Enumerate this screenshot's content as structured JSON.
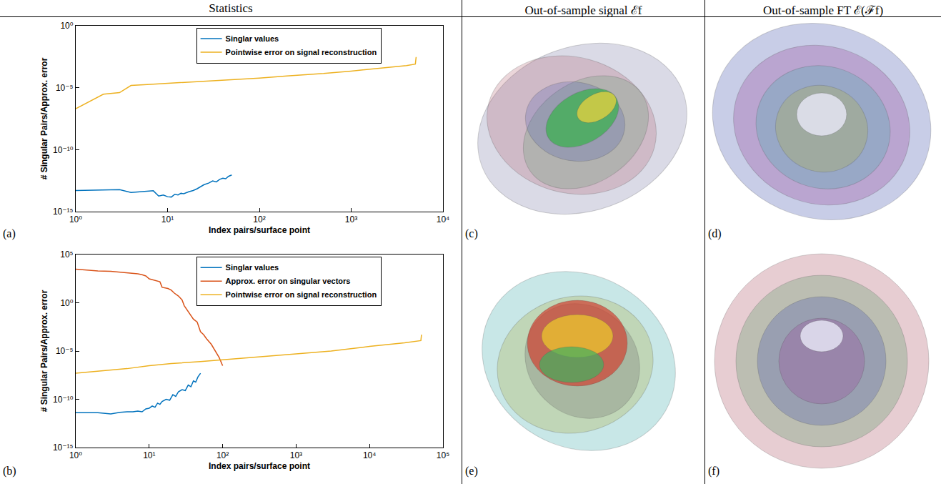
{
  "header": {
    "columns": [
      "Statistics",
      "Out-of-sample signal ℰf",
      "Out-of-sample FT ℰ(ℱf)"
    ]
  },
  "chart_data": [
    {
      "panel": "(a)",
      "type": "line",
      "log": true,
      "grid": false,
      "legend": "top",
      "xlabel": "Index pairs/surface point",
      "ylabel": "# Singular Pairs/Approx. error",
      "xlim": [
        1,
        10000
      ],
      "xticks": [
        {
          "value": 1,
          "label": "10⁰"
        },
        {
          "value": 10,
          "label": "10¹"
        },
        {
          "value": 100,
          "label": "10²"
        },
        {
          "value": 1000,
          "label": "10³"
        },
        {
          "value": 10000,
          "label": "10⁴"
        }
      ],
      "ylim": [
        1e-15,
        1
      ],
      "yticks": [
        {
          "value": 1e-15,
          "label": "10⁻¹⁵"
        },
        {
          "value": 1e-10,
          "label": "10⁻¹⁰"
        },
        {
          "value": 1e-05,
          "label": "10⁻⁵"
        },
        {
          "value": 1,
          "label": "10⁰"
        }
      ],
      "series": [
        {
          "name": "Singlar values",
          "color": "#0072BD",
          "x": [
            1,
            2,
            3,
            4,
            5,
            6,
            7,
            8,
            9,
            10,
            11,
            12,
            13,
            14,
            15,
            17,
            19,
            21,
            23,
            25,
            28,
            31,
            34,
            37,
            40,
            43,
            46,
            50
          ],
          "values": [
            5e-14,
            5.5e-14,
            6e-14,
            3.5e-14,
            4e-14,
            4.5e-14,
            4.8e-14,
            1.8e-14,
            2.2e-14,
            1.6e-14,
            1.5e-14,
            2.5e-14,
            2.2e-14,
            3e-14,
            2.8e-14,
            4e-14,
            5e-14,
            7e-14,
            1e-13,
            1.5e-13,
            2e-13,
            3e-13,
            2.5e-13,
            4e-13,
            5e-13,
            4.5e-13,
            7e-13,
            9e-13
          ]
        },
        {
          "name": "Pointwise error on signal reconstruction",
          "color": "#EDB120",
          "x": [
            1,
            2,
            3,
            4,
            6,
            10,
            20,
            50,
            100,
            200,
            500,
            1000,
            2000,
            4000,
            5000,
            5100
          ],
          "values": [
            2e-07,
            3e-06,
            4e-06,
            1.5e-05,
            1.8e-05,
            2.2e-05,
            3e-05,
            4.5e-05,
            6e-05,
            9e-05,
            0.00014,
            0.00022,
            0.00035,
            0.0006,
            0.0008,
            0.003
          ]
        }
      ]
    },
    {
      "panel": "(b)",
      "type": "line",
      "log": true,
      "grid": false,
      "legend": "top",
      "xlabel": "Index pairs/surface point",
      "ylabel": "# Singular Pairs/Approx. error",
      "xlim": [
        1,
        100000
      ],
      "xticks": [
        {
          "value": 1,
          "label": "10⁰"
        },
        {
          "value": 10,
          "label": "10¹"
        },
        {
          "value": 100,
          "label": "10²"
        },
        {
          "value": 1000,
          "label": "10³"
        },
        {
          "value": 10000,
          "label": "10⁴"
        },
        {
          "value": 100000,
          "label": "10⁵"
        }
      ],
      "ylim": [
        1e-15,
        100000
      ],
      "yticks": [
        {
          "value": 1e-15,
          "label": "10⁻¹⁵"
        },
        {
          "value": 1e-10,
          "label": "10⁻¹⁰"
        },
        {
          "value": 1e-05,
          "label": "10⁻⁵"
        },
        {
          "value": 1,
          "label": "10⁰"
        },
        {
          "value": 100000,
          "label": "10⁵"
        }
      ],
      "series": [
        {
          "name": "Singlar values",
          "color": "#0072BD",
          "x": [
            1,
            2,
            3,
            4,
            5,
            6,
            7,
            8,
            9,
            10,
            11,
            12,
            13,
            14,
            15,
            17,
            19,
            21,
            23,
            25,
            28,
            31,
            34,
            37,
            40,
            43,
            46,
            50
          ],
          "values": [
            4e-12,
            4e-12,
            3e-12,
            4.5e-12,
            5e-12,
            5e-12,
            6e-12,
            5e-12,
            1e-11,
            1.2e-11,
            2e-11,
            1.5e-11,
            4e-11,
            3e-11,
            6e-11,
            1e-10,
            8e-11,
            3e-10,
            2e-10,
            6e-10,
            1e-09,
            8e-10,
            3e-09,
            2e-09,
            8e-09,
            6e-09,
            2e-08,
            5e-08
          ]
        },
        {
          "name": "Approx. error on singular vectors",
          "color": "#D95319",
          "x": [
            1,
            2,
            3,
            4,
            5,
            6,
            7,
            8,
            9,
            10,
            12,
            14,
            15,
            18,
            20,
            22,
            25,
            28,
            30,
            35,
            40,
            45,
            50,
            55,
            60,
            70,
            80,
            90,
            100
          ],
          "values": [
            3000,
            2000,
            1800,
            1500,
            1200,
            1100,
            1000,
            800,
            600,
            300,
            200,
            150,
            40,
            30,
            20,
            10,
            5,
            2,
            0.5,
            0.1,
            0.02,
            0.01,
            0.001,
            0.0005,
            0.0002,
            5e-05,
            1e-05,
            2e-06,
            3e-07
          ]
        },
        {
          "name": "Pointwise error on signal reconstruction",
          "color": "#EDB120",
          "x": [
            1,
            2,
            3,
            5,
            10,
            20,
            50,
            100,
            300,
            1000,
            3000,
            10000,
            30000,
            50000,
            51000
          ],
          "values": [
            5e-08,
            8e-08,
            1e-07,
            1.5e-07,
            3e-07,
            5e-07,
            8e-07,
            1.2e-06,
            2.5e-06,
            5e-06,
            1e-05,
            3e-05,
            7e-05,
            0.00012,
            0.0005
          ]
        }
      ]
    }
  ],
  "images": [
    {
      "panel": "(c)"
    },
    {
      "panel": "(d)"
    },
    {
      "panel": "(e)"
    },
    {
      "panel": "(f)"
    }
  ]
}
